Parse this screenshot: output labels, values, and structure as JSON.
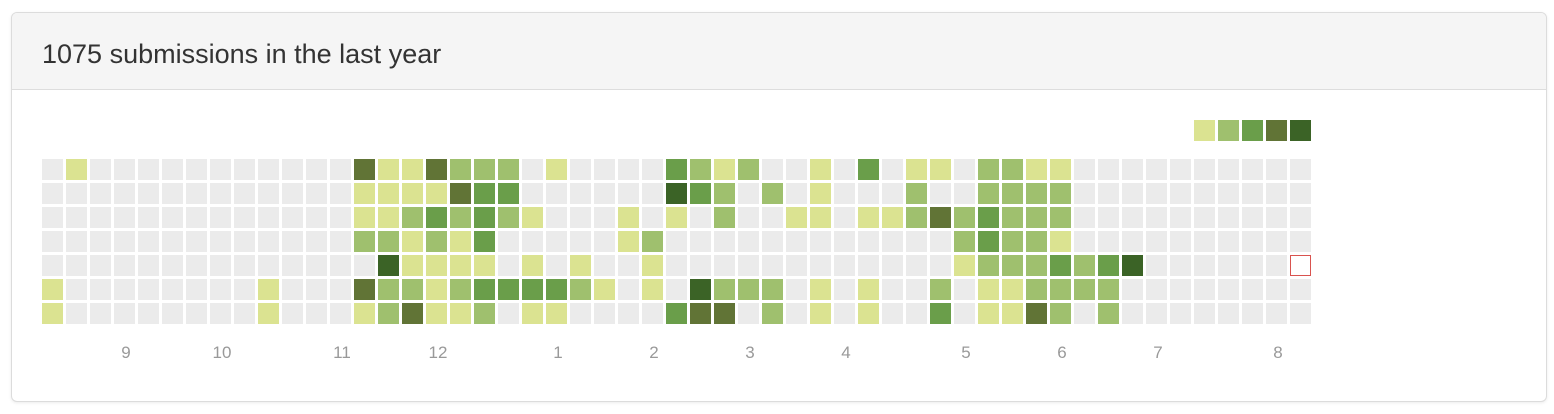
{
  "header": {
    "title": "1075 submissions in the last year"
  },
  "colors": {
    "empty": "#ebebeb",
    "levels": [
      "#dbe391",
      "#9fc06e",
      "#6a9e4a",
      "#617436",
      "#3b6326"
    ],
    "today_border": "#d9534f"
  },
  "legend": {
    "levels": [
      1,
      2,
      3,
      4,
      5
    ]
  },
  "calendar": {
    "weeks": 53,
    "today": {
      "week": 52,
      "day": 4
    },
    "levels": [
      "0000000000000000000000000000000000000000000000000000",
      "1000000000000000000000000000000000000000000000000000",
      "0000000000000000000000000000000000000000000000000000",
      "0000000000000000000000000000000000000000000000000000",
      "0000000000000000000000000000000000000000000000000000",
      "0000000000000000000000000000000000000000000000000000",
      "0000000000000000000000000000000000000000000000000000",
      "0000000000000000000000000000000000000000000000000000",
      "0000000000000000000000000000000000000000000000000000",
      "0000000000000000000000000000000000000000000000000000",
      "0000000000000000000000000000000000000000000000000000",
      "0000000000000000000000000000000000000000000000000000",
      "0000000000000000000000000000000000000000000000000000",
      "0000000000000000000000000000000000000000000000000000"
    ],
    "rows": [
      "01000000000004114222010000321200103011022110000000000",
      "00000000000001111433000000532020100020022220000000000",
      "00000000000001123232100010102001101124232220000000000",
      "00000000000002212130000012000000000000232210000000000",
      "00000000000000511110101001000000000000122232350000000",
      "10000000010004221233332101052220101002011222200000000",
      "10000000010001241120110000344020101003011420200000000"
    ]
  },
  "months": [
    {
      "label": "9",
      "week": 3.5
    },
    {
      "label": "10",
      "week": 7.5
    },
    {
      "label": "11",
      "week": 12.5
    },
    {
      "label": "12",
      "week": 16.5
    },
    {
      "label": "1",
      "week": 21.5
    },
    {
      "label": "2",
      "week": 25.5
    },
    {
      "label": "3",
      "week": 29.5
    },
    {
      "label": "4",
      "week": 33.5
    },
    {
      "label": "5",
      "week": 38.5
    },
    {
      "label": "6",
      "week": 42.5
    },
    {
      "label": "7",
      "week": 46.5
    },
    {
      "label": "8",
      "week": 51.5
    }
  ]
}
